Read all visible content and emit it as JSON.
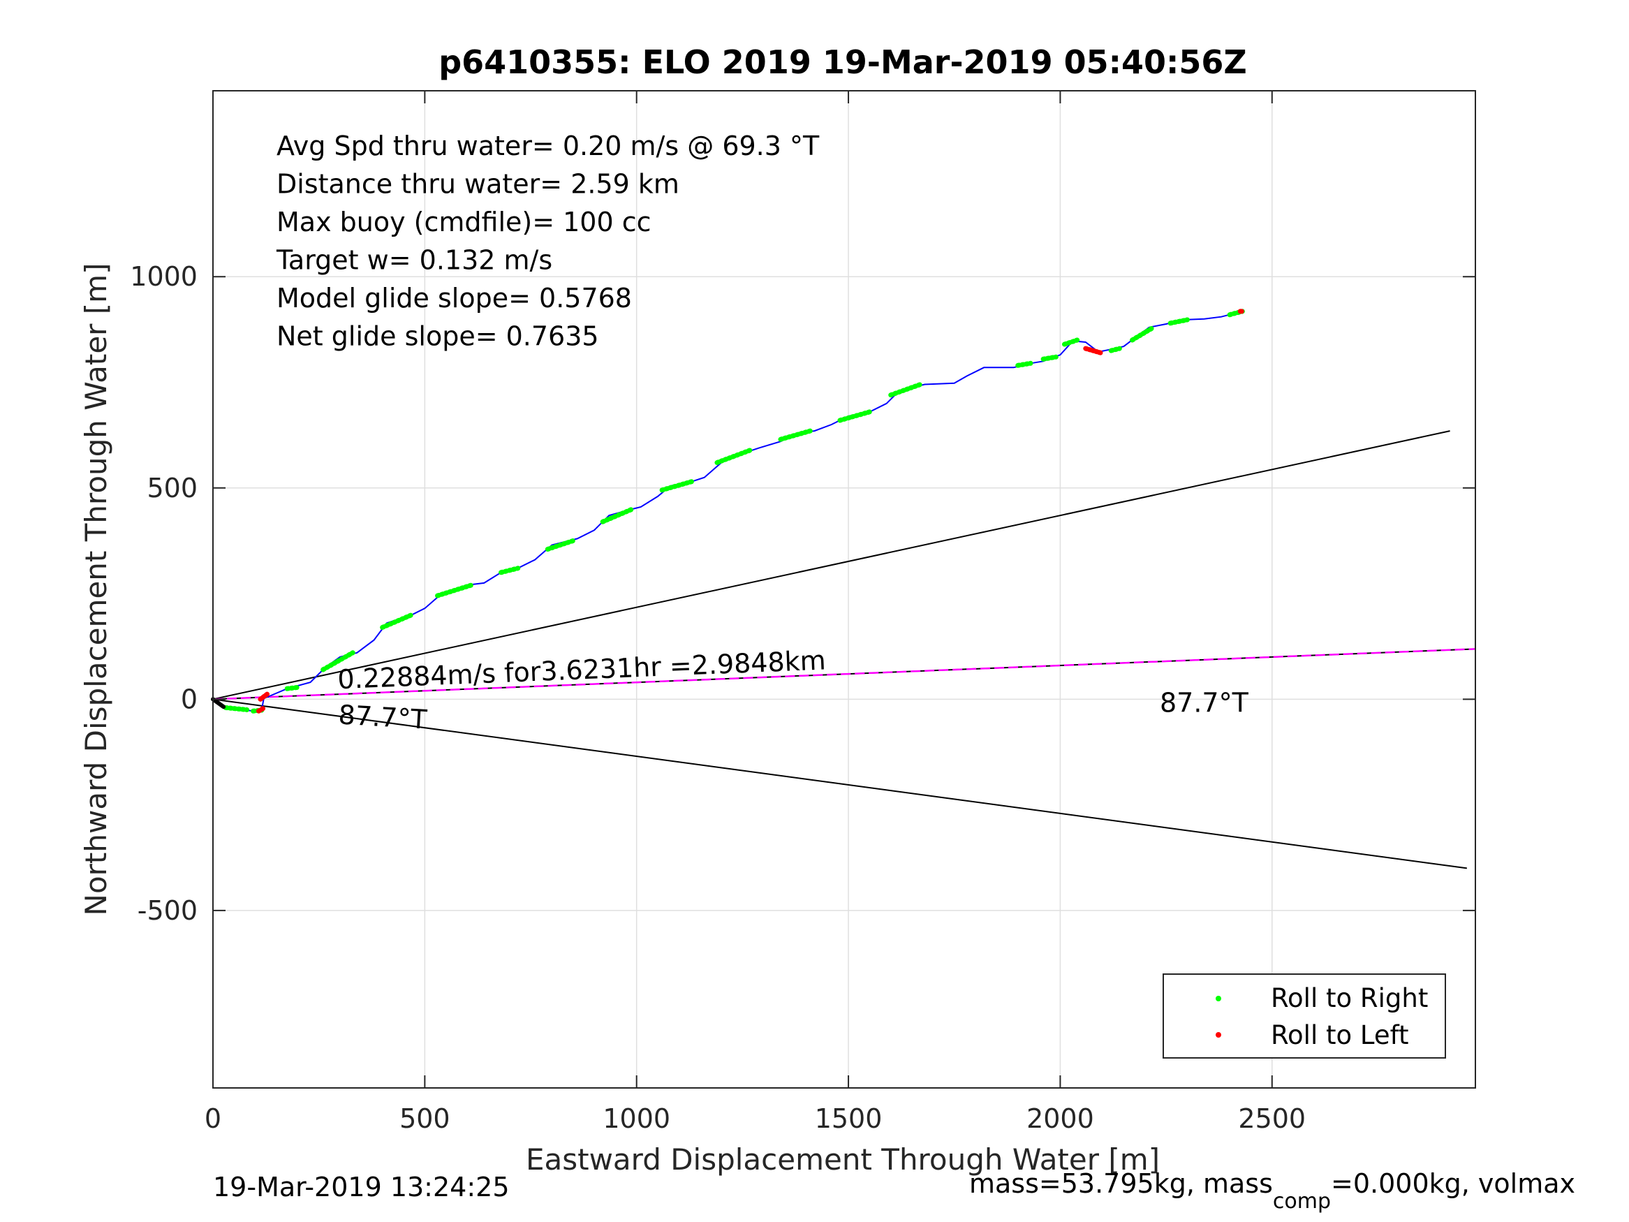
{
  "chart_data": {
    "type": "line",
    "title": "p6410355: ELO 2019 19-Mar-2019 05:40:56Z",
    "xlabel": "Eastward Displacement Through Water [m]",
    "ylabel": "Northward Displacement Through Water [m]",
    "xlim": [
      0,
      2980
    ],
    "ylim": [
      -920,
      1440
    ],
    "xticks": [
      0,
      500,
      1000,
      1500,
      2000,
      2500
    ],
    "yticks": [
      -500,
      0,
      500,
      1000
    ],
    "ytick_labels": [
      "-500",
      "0",
      "500",
      "1000"
    ],
    "grid": true,
    "stats_lines": [
      "Avg Spd thru water=  0.20 m/s @  69.3 °T",
      "Distance thru water=  2.59 km",
      "Max buoy (cmdfile)= 100 cc",
      "Target w= 0.132 m/s",
      "Model glide slope= 0.5768",
      "Net glide slope= 0.7635"
    ],
    "track": {
      "name": "glider track",
      "color": "#0000ff",
      "points": [
        [
          0,
          0
        ],
        [
          18,
          -15
        ],
        [
          60,
          -25
        ],
        [
          100,
          -28
        ],
        [
          115,
          -25
        ],
        [
          120,
          2
        ],
        [
          135,
          8
        ],
        [
          175,
          25
        ],
        [
          230,
          40
        ],
        [
          265,
          75
        ],
        [
          300,
          100
        ],
        [
          340,
          110
        ],
        [
          380,
          140
        ],
        [
          410,
          180
        ],
        [
          470,
          200
        ],
        [
          500,
          215
        ],
        [
          540,
          250
        ],
        [
          600,
          270
        ],
        [
          640,
          275
        ],
        [
          680,
          300
        ],
        [
          720,
          310
        ],
        [
          760,
          330
        ],
        [
          800,
          365
        ],
        [
          860,
          380
        ],
        [
          900,
          400
        ],
        [
          935,
          435
        ],
        [
          990,
          450
        ],
        [
          1010,
          455
        ],
        [
          1050,
          480
        ],
        [
          1080,
          505
        ],
        [
          1130,
          515
        ],
        [
          1160,
          525
        ],
        [
          1200,
          560
        ],
        [
          1260,
          585
        ],
        [
          1290,
          595
        ],
        [
          1340,
          610
        ],
        [
          1380,
          630
        ],
        [
          1420,
          635
        ],
        [
          1460,
          650
        ],
        [
          1500,
          670
        ],
        [
          1550,
          680
        ],
        [
          1590,
          700
        ],
        [
          1620,
          730
        ],
        [
          1680,
          745
        ],
        [
          1750,
          748
        ],
        [
          1780,
          765
        ],
        [
          1820,
          785
        ],
        [
          1860,
          785
        ],
        [
          1890,
          785
        ],
        [
          1930,
          795
        ],
        [
          1960,
          800
        ],
        [
          2000,
          815
        ],
        [
          2030,
          848
        ],
        [
          2060,
          845
        ],
        [
          2090,
          822
        ],
        [
          2120,
          828
        ],
        [
          2150,
          835
        ],
        [
          2180,
          858
        ],
        [
          2210,
          880
        ],
        [
          2250,
          888
        ],
        [
          2290,
          898
        ],
        [
          2340,
          900
        ],
        [
          2380,
          905
        ],
        [
          2430,
          918
        ]
      ]
    },
    "roll_right": {
      "name": "Roll to Right",
      "color": "#00ff00",
      "segments": [
        [
          [
            30,
            -20
          ],
          [
            80,
            -25
          ]
        ],
        [
          [
            95,
            -28
          ],
          [
            115,
            -26
          ]
        ],
        [
          [
            175,
            25
          ],
          [
            200,
            28
          ]
        ],
        [
          [
            260,
            70
          ],
          [
            330,
            110
          ]
        ],
        [
          [
            400,
            170
          ],
          [
            470,
            200
          ]
        ],
        [
          [
            530,
            245
          ],
          [
            610,
            270
          ]
        ],
        [
          [
            680,
            300
          ],
          [
            720,
            310
          ]
        ],
        [
          [
            790,
            355
          ],
          [
            850,
            375
          ]
        ],
        [
          [
            920,
            420
          ],
          [
            990,
            450
          ]
        ],
        [
          [
            1060,
            495
          ],
          [
            1130,
            515
          ]
        ],
        [
          [
            1190,
            560
          ],
          [
            1270,
            590
          ]
        ],
        [
          [
            1340,
            615
          ],
          [
            1410,
            635
          ]
        ],
        [
          [
            1480,
            660
          ],
          [
            1550,
            680
          ]
        ],
        [
          [
            1600,
            720
          ],
          [
            1670,
            745
          ]
        ],
        [
          [
            1900,
            790
          ],
          [
            1930,
            795
          ]
        ],
        [
          [
            1960,
            805
          ],
          [
            1990,
            810
          ]
        ],
        [
          [
            2010,
            840
          ],
          [
            2040,
            850
          ]
        ],
        [
          [
            2120,
            825
          ],
          [
            2140,
            830
          ]
        ],
        [
          [
            2170,
            850
          ],
          [
            2220,
            880
          ]
        ],
        [
          [
            2260,
            890
          ],
          [
            2300,
            898
          ]
        ],
        [
          [
            2400,
            910
          ],
          [
            2430,
            918
          ]
        ]
      ]
    },
    "roll_left": {
      "name": "Roll to Left",
      "color": "#ff0000",
      "segments": [
        [
          [
            108,
            -28
          ],
          [
            118,
            -22
          ]
        ],
        [
          [
            112,
            0
          ],
          [
            128,
            12
          ]
        ],
        [
          [
            2060,
            830
          ],
          [
            2095,
            820
          ]
        ],
        [
          [
            2425,
            918
          ],
          [
            2432,
            918
          ]
        ]
      ]
    },
    "start_marker": {
      "color": "#000000",
      "segment": [
        [
          0,
          0
        ],
        [
          25,
          -18
        ]
      ]
    },
    "current_line": {
      "color": "#ff00ff",
      "x": [
        0,
        2980
      ],
      "y": [
        0,
        119
      ],
      "label": "0.22884m/s for3.6231hr =2.9848km"
    },
    "heading_lines": [
      {
        "x": [
          0,
          2920
        ],
        "y": [
          0,
          635
        ],
        "color": "#000000"
      },
      {
        "x": [
          0,
          2960
        ],
        "y": [
          0,
          -400
        ],
        "color": "#000000"
      }
    ],
    "heading_labels": [
      {
        "text": "87.7°T",
        "x": 295,
        "y": -58
      },
      {
        "text": "87.7°T",
        "x": 2235,
        "y": -30
      }
    ],
    "legend": {
      "placement": "bottom-right",
      "entries": [
        {
          "label": "Roll to Right",
          "color": "#00ff00"
        },
        {
          "label": "Roll to Left",
          "color": "#ff0000"
        }
      ]
    }
  },
  "footer": {
    "timestamp": "19-Mar-2019 13:24:25",
    "mass_prefix": "mass=53.795kg, mass",
    "mass_sub": "comp",
    "mass_suffix": "=0.000kg, volmax"
  }
}
